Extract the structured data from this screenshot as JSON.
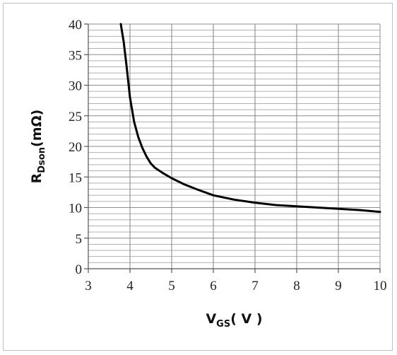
{
  "chart_data": {
    "type": "line",
    "title": "",
    "xlabel": {
      "main": "V",
      "sub": "GS",
      "unit": "( V )"
    },
    "ylabel": {
      "main": "R",
      "sub": "Dson",
      "unit": "(mΩ)"
    },
    "xlim": [
      3,
      10
    ],
    "ylim": [
      0,
      40
    ],
    "x_ticks": [
      3,
      4,
      5,
      6,
      7,
      8,
      9,
      10
    ],
    "y_ticks": [
      0,
      5,
      10,
      15,
      20,
      25,
      30,
      35,
      40
    ],
    "grid": true,
    "legend": "none",
    "colors": {
      "line": "#000000",
      "grid": "#a6a6a6",
      "axis": "#555555"
    },
    "series": [
      {
        "x": [
          3.78,
          3.85,
          3.92,
          4.0,
          4.1,
          4.2,
          4.3,
          4.4,
          4.5,
          4.6,
          4.8,
          5.0,
          5.3,
          5.6,
          6.0,
          6.5,
          7.0,
          7.5,
          8.0,
          8.5,
          9.0,
          9.5,
          10.0
        ],
        "y": [
          40,
          37,
          33,
          28,
          24,
          21.5,
          19.7,
          18.3,
          17.2,
          16.5,
          15.6,
          14.8,
          13.8,
          13.0,
          12.0,
          11.3,
          10.8,
          10.4,
          10.2,
          10.0,
          9.8,
          9.6,
          9.3
        ]
      }
    ]
  }
}
